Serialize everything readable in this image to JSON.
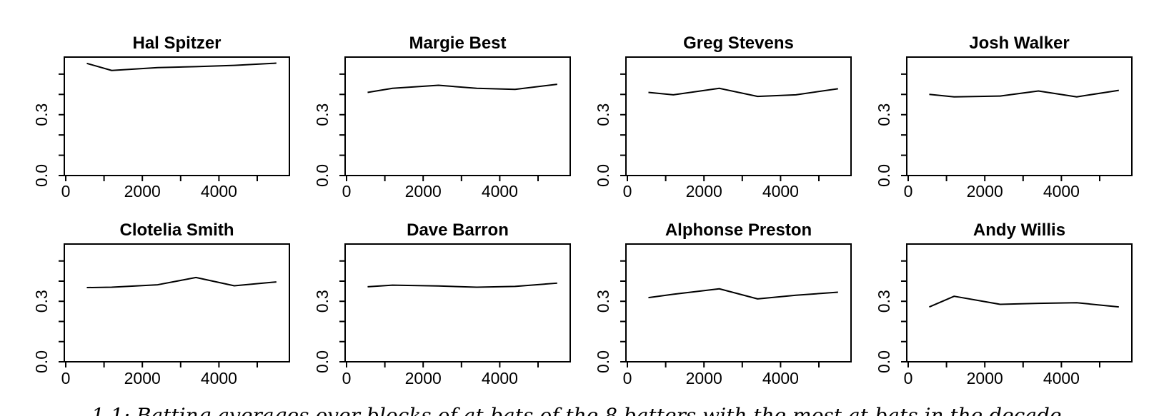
{
  "figure": {
    "background": "#ffffff",
    "ink_color": "#000000",
    "caption_fragment": "1.1: Batting averages over blocks of at-bats of the 8 batters with the most at-bats in the decade."
  },
  "chart_data": {
    "type": "line",
    "layout": "small-multiples-2-rows-4-cols",
    "title": "",
    "xlabel": "",
    "ylabel": "",
    "grid": false,
    "legend": false,
    "xlim": [
      0,
      5840
    ],
    "ylim": [
      0,
      0.584
    ],
    "x_ticks": [
      0,
      1000,
      2000,
      3000,
      4000,
      5000
    ],
    "x_tick_labels": [
      "0",
      "",
      "2000",
      "",
      "4000",
      ""
    ],
    "y_ticks": [
      0,
      0.1,
      0.2,
      0.3,
      0.4,
      0.5
    ],
    "y_tick_labels": [
      "0.0",
      "",
      "",
      "0.3",
      "",
      ""
    ],
    "x": [
      550,
      1200,
      2400,
      3400,
      4400,
      5500
    ],
    "series": [
      {
        "name": "Hal Spitzer",
        "values": [
          0.553,
          0.518,
          0.532,
          0.537,
          0.543,
          0.554
        ]
      },
      {
        "name": "Margie Best",
        "values": [
          0.41,
          0.43,
          0.445,
          0.43,
          0.425,
          0.45
        ]
      },
      {
        "name": "Greg Stevens",
        "values": [
          0.41,
          0.398,
          0.43,
          0.39,
          0.398,
          0.428
        ]
      },
      {
        "name": "Josh Walker",
        "values": [
          0.4,
          0.388,
          0.392,
          0.417,
          0.388,
          0.42
        ]
      },
      {
        "name": "Clotelia Smith",
        "values": [
          0.368,
          0.37,
          0.382,
          0.418,
          0.377,
          0.396
        ]
      },
      {
        "name": "Dave Barron",
        "values": [
          0.372,
          0.38,
          0.376,
          0.37,
          0.374,
          0.39
        ]
      },
      {
        "name": "Alphonse Preston",
        "values": [
          0.318,
          0.335,
          0.362,
          0.312,
          0.33,
          0.345
        ]
      },
      {
        "name": "Andy Willis",
        "values": [
          0.272,
          0.325,
          0.285,
          0.29,
          0.293,
          0.272
        ]
      }
    ]
  }
}
